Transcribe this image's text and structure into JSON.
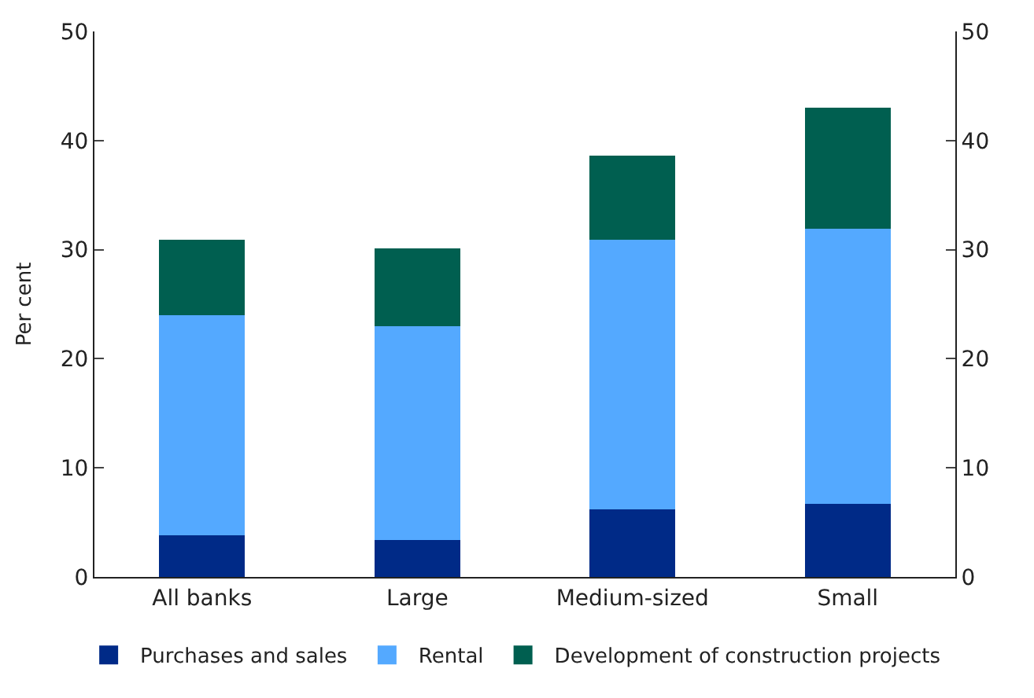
{
  "chart_data": {
    "type": "bar",
    "stacked": true,
    "ylabel": "Per cent",
    "categories": [
      "All banks",
      "Large",
      "Medium-sized",
      "Small"
    ],
    "series": [
      {
        "name": "Purchases and sales",
        "color": "#002a87",
        "values": [
          3.8,
          3.4,
          6.2,
          6.7
        ]
      },
      {
        "name": "Rental",
        "color": "#54a9ff",
        "values": [
          20.2,
          19.6,
          24.7,
          25.2
        ]
      },
      {
        "name": "Development of construction projects",
        "color": "#005f50",
        "values": [
          6.9,
          7.1,
          7.7,
          11.1
        ]
      }
    ],
    "ylim": [
      0,
      50
    ],
    "yticks": [
      0,
      10,
      20,
      30,
      40,
      50
    ],
    "y2lim": [
      0,
      50
    ],
    "y2ticks": [
      0,
      10,
      20,
      30,
      40,
      50
    ],
    "legend": "bottom"
  }
}
